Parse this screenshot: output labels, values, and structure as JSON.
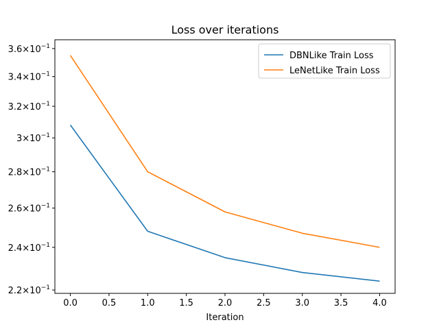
{
  "chart_data": {
    "type": "line",
    "title": "Loss over iterations",
    "xlabel": "Iteration",
    "ylabel": "",
    "yscale": "log",
    "xlim": [
      -0.2,
      4.2
    ],
    "ylim": [
      0.2185,
      0.3665
    ],
    "grid": false,
    "legend_position": "top-right",
    "x": [
      0,
      1,
      2,
      3,
      4
    ],
    "x_ticks": [
      0.0,
      0.5,
      1.0,
      1.5,
      2.0,
      2.5,
      3.0,
      3.5,
      4.0
    ],
    "x_tick_labels": [
      "0.0",
      "0.5",
      "1.0",
      "1.5",
      "2.0",
      "2.5",
      "3.0",
      "3.5",
      "4.0"
    ],
    "y_ticks": [
      0.22,
      0.24,
      0.26,
      0.28,
      0.3,
      0.32,
      0.34,
      0.36
    ],
    "y_tick_mantissas": [
      "2.2",
      "2.4",
      "2.6",
      "2.8",
      "3",
      "3.2",
      "3.4",
      "3.6"
    ],
    "y_tick_base": "×10",
    "y_tick_exponent": "−1",
    "series": [
      {
        "name": "DBNLike Train Loss",
        "color": "#1f77b4",
        "values": [
          0.308,
          0.248,
          0.235,
          0.228,
          0.224
        ]
      },
      {
        "name": "LeNetLike Train Loss",
        "color": "#ff7f0e",
        "values": [
          0.355,
          0.28,
          0.258,
          0.247,
          0.24
        ]
      }
    ]
  }
}
